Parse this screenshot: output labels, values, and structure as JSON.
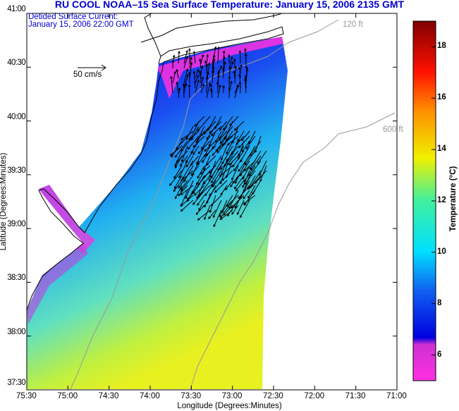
{
  "chart_data": {
    "type": "heatmap",
    "title": "RU COOL  NOAA–15  Sea Surface Temperature:  January 15, 2006 2135 GMT",
    "subtitle_lines": [
      "Detided Surface Current:",
      "January 15, 2006 22:00 GMT"
    ],
    "xlabel": "Longitude (Degrees:Minutes)",
    "ylabel": "Latitude (Degrees:Minutes)",
    "x_ticks": [
      "75:30",
      "75:00",
      "74:30",
      "74:00",
      "73:30",
      "73:00",
      "72:30",
      "72:00",
      "71:30",
      "71:00"
    ],
    "y_ticks": [
      "41:00",
      "40:30",
      "40:00",
      "39:30",
      "39:00",
      "38:30",
      "38:00",
      "37:30"
    ],
    "xlim": [
      -75.5,
      -71.0
    ],
    "ylim": [
      37.5,
      41.0
    ],
    "colorbar": {
      "label": "Temperature (°C)",
      "range": [
        5,
        19
      ],
      "tick_labels": [
        "18",
        "16",
        "14",
        "12",
        "10",
        "8",
        "6"
      ],
      "tick_values": [
        18,
        16,
        14,
        12,
        10,
        8,
        6
      ]
    },
    "isobath_labels": [
      "120 ft",
      "600 ft"
    ],
    "vector_scale_label": "50 cm/s",
    "colors": {
      "title": "#0000cc",
      "land": "#ffffff",
      "coast": "#000000",
      "isobath": "#999999"
    }
  }
}
